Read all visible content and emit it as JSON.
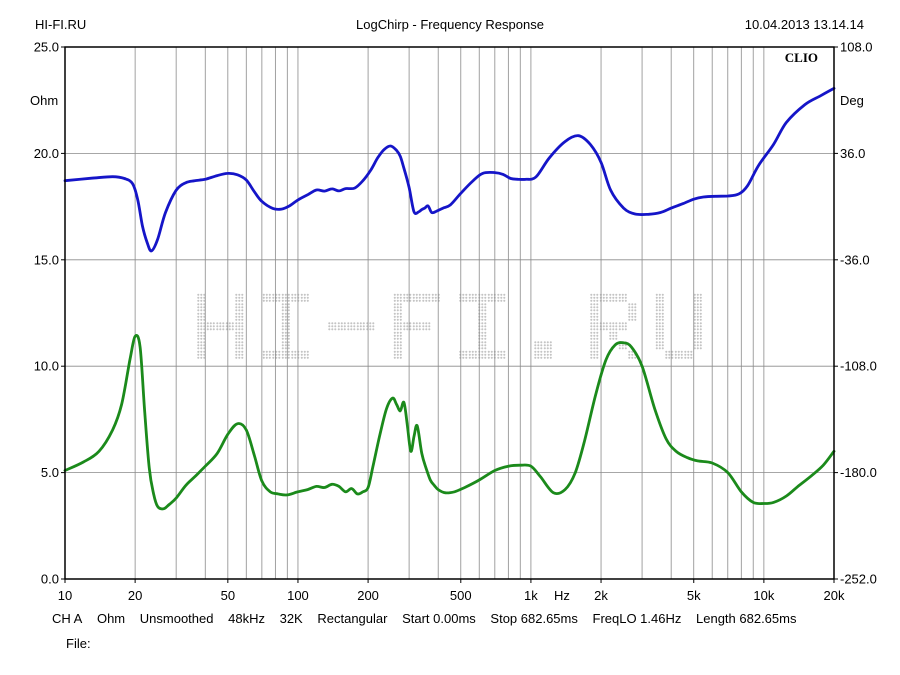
{
  "header": {
    "left": "HI-FI.RU",
    "center": "LogChirp - Frequency Response",
    "right": "10.04.2013 13.14.14"
  },
  "chart_data": {
    "type": "line",
    "xscale": "log",
    "xlim": [
      10,
      20000
    ],
    "x_ticks": [
      10,
      20,
      50,
      100,
      200,
      500,
      1000,
      2000,
      5000,
      10000,
      20000
    ],
    "x_tick_labels": [
      "10",
      "20",
      "50",
      "100",
      "200",
      "500",
      "1k",
      "2k",
      "5k",
      "10k",
      "20k"
    ],
    "x_unit": "Hz",
    "y_left": {
      "unit": "Ohm",
      "lim": [
        0,
        25
      ],
      "ticks": [
        "0.0",
        "5.0",
        "10.0",
        "15.0",
        "20.0",
        "25.0"
      ]
    },
    "y_right": {
      "unit": "Deg",
      "lim": [
        -252,
        108
      ],
      "ticks": [
        "-252.0",
        "-180.0",
        "-108.0",
        "-36.0",
        "36.0",
        "108.0"
      ]
    },
    "brand": "CLIO",
    "watermark": "HI-FI.RU",
    "grid": true,
    "series": [
      {
        "axis": "right",
        "color": "#1515c8",
        "x": [
          10,
          13,
          16,
          18,
          19.5,
          20.5,
          21.5,
          22.5,
          23.5,
          25,
          27,
          30,
          33,
          36,
          40,
          45,
          50,
          55,
          60,
          65,
          70,
          78,
          85,
          92,
          100,
          110,
          120,
          130,
          140,
          150,
          160,
          175,
          190,
          205,
          220,
          235,
          250,
          265,
          275,
          285,
          300,
          315,
          330,
          340,
          350,
          362,
          375,
          395,
          420,
          450,
          500,
          560,
          620,
          700,
          760,
          820,
          880,
          950,
          1050,
          1200,
          1400,
          1600,
          1800,
          2000,
          2200,
          2500,
          2800,
          3200,
          3600,
          4000,
          4500,
          5000,
          5500,
          6200,
          7000,
          7800,
          8500,
          9500,
          11000,
          12500,
          15000,
          17500,
          20000
        ],
        "y": [
          17.5,
          19.2,
          20.2,
          19,
          15.5,
          5,
          -13,
          -24,
          -30,
          -22,
          -4,
          11,
          16.2,
          17.5,
          18.5,
          21,
          22.5,
          21.5,
          18,
          10,
          3.5,
          -1.2,
          -1.7,
          0.5,
          4.5,
          8,
          11.2,
          10.5,
          12,
          10.6,
          12.2,
          12.5,
          17.5,
          24.5,
          33,
          38.8,
          41,
          38,
          34,
          26,
          13,
          -3.5,
          -3.5,
          -2,
          -1,
          0.5,
          -4,
          -3,
          -1,
          1,
          9,
          17,
          22.5,
          23,
          21.8,
          19,
          18.5,
          18.5,
          20,
          33,
          44,
          48,
          42,
          30,
          11,
          -1,
          -5,
          -5.2,
          -4,
          -1,
          2,
          5,
          6.5,
          7,
          7.2,
          8.5,
          14,
          28,
          42,
          57,
          69,
          75,
          80
        ]
      },
      {
        "axis": "left",
        "color": "#1b8a1b",
        "x": [
          10,
          12,
          14,
          16,
          17.5,
          19,
          20,
          21,
          22,
          23,
          24,
          25,
          26.5,
          28,
          30,
          33,
          36,
          40,
          45,
          50,
          55,
          60,
          65,
          70,
          76,
          82,
          90,
          100,
          110,
          120,
          130,
          140,
          150,
          160,
          170,
          180,
          190,
          200,
          210,
          225,
          240,
          255,
          265,
          275,
          285,
          295,
          305,
          315,
          325,
          340,
          355,
          370,
          385,
          400,
          430,
          470,
          520,
          600,
          700,
          800,
          900,
          1000,
          1100,
          1250,
          1400,
          1550,
          1700,
          1900,
          2100,
          2300,
          2500,
          2700,
          3000,
          3400,
          3800,
          4200,
          4700,
          5200,
          6000,
          7000,
          8000,
          9000,
          10000,
          11000,
          12500,
          14000,
          16000,
          18000,
          20000
        ],
        "y": [
          5.1,
          5.5,
          6,
          7,
          8.2,
          10.3,
          11.4,
          10.9,
          7.8,
          5.2,
          4,
          3.4,
          3.3,
          3.5,
          3.8,
          4.4,
          4.8,
          5.3,
          5.9,
          6.8,
          7.3,
          7.0,
          5.8,
          4.6,
          4.1,
          4.0,
          3.95,
          4.1,
          4.2,
          4.35,
          4.3,
          4.45,
          4.35,
          4.1,
          4.25,
          4.0,
          4.1,
          4.3,
          5.3,
          6.8,
          8.0,
          8.5,
          8.2,
          7.9,
          8.3,
          7.2,
          6.0,
          6.7,
          7.2,
          5.9,
          5.2,
          4.65,
          4.4,
          4.2,
          4.05,
          4.1,
          4.3,
          4.65,
          5.1,
          5.3,
          5.35,
          5.3,
          4.8,
          4.05,
          4.2,
          5.0,
          6.5,
          8.7,
          10.3,
          11.0,
          11.1,
          10.9,
          10.0,
          8.0,
          6.6,
          6.0,
          5.7,
          5.55,
          5.45,
          5.0,
          4.1,
          3.6,
          3.55,
          3.6,
          3.9,
          4.35,
          4.85,
          5.35,
          6.0
        ]
      }
    ]
  },
  "footer": {
    "items": [
      "CH A",
      "Ohm",
      "Unsmoothed",
      "48kHz",
      "32K",
      "Rectangular",
      "Start 0.00ms",
      "Stop 682.65ms",
      "FreqLO 1.46Hz",
      "Length 682.65ms"
    ],
    "file_label": "File:"
  }
}
